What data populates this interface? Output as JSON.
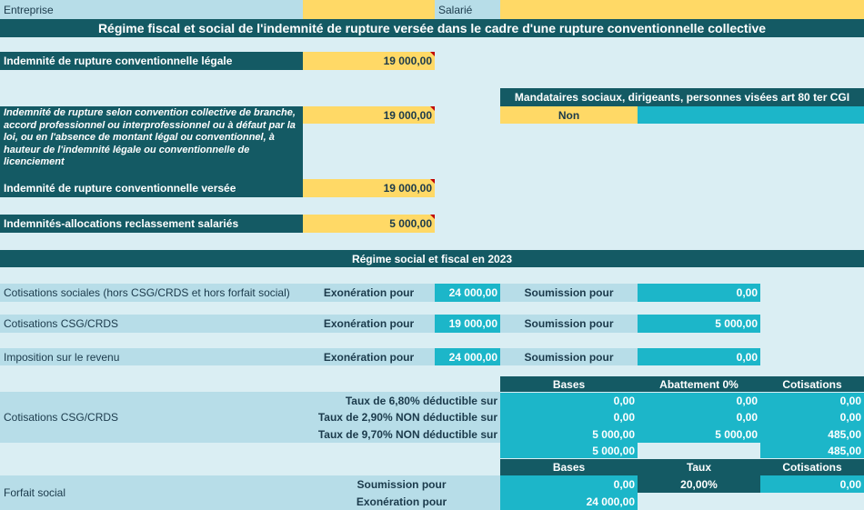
{
  "header": {
    "entreprise_label": "Entreprise",
    "salarie_label": "Salarié",
    "main_title": "Régime fiscal et social de l'indemnité de rupture versée dans le cadre d'une rupture conventionnelle collective"
  },
  "indemnites": {
    "legale_label": "Indemnité de rupture conventionnelle légale",
    "legale_value": "19 000,00",
    "convention_label": "Indemnité de rupture selon convention collective de branche, accord professionnel ou interprofessionnel ou à défaut par la loi, ou en l'absence de montant légal ou conventionnel, à hauteur de l'indemnité légale ou conventionnelle de licenciement",
    "convention_value": "19 000,00",
    "versee_label": "Indemnité de rupture conventionnelle versée",
    "versee_value": "19 000,00",
    "reclassement_label": "Indemnités-allocations reclassement salariés",
    "reclassement_value": "5 000,00"
  },
  "mandataires": {
    "label": "Mandataires sociaux, dirigeants, personnes visées art 80 ter CGI",
    "value": "Non"
  },
  "regime": {
    "title": "Régime social et fiscal en 2023",
    "exoneration_label": "Exonération pour",
    "soumission_label": "Soumission pour",
    "rows": [
      {
        "label": "Cotisations sociales (hors CSG/CRDS et hors forfait social)",
        "exoneration": "24 000,00",
        "soumission": "0,00"
      },
      {
        "label": "Cotisations CSG/CRDS",
        "exoneration": "19 000,00",
        "soumission": "5 000,00"
      },
      {
        "label": "Imposition sur le revenu",
        "exoneration": "24 000,00",
        "soumission": "0,00"
      }
    ]
  },
  "csg": {
    "label": "Cotisations CSG/CRDS",
    "headers": {
      "bases": "Bases",
      "abattement": "Abattement 0%",
      "cotisations": "Cotisations"
    },
    "rows": [
      {
        "label": "Taux de 6,80% déductible sur",
        "bases": "0,00",
        "abattement": "0,00",
        "cotisations": "0,00"
      },
      {
        "label": "Taux de 2,90% NON déductible sur",
        "bases": "0,00",
        "abattement": "0,00",
        "cotisations": "0,00"
      },
      {
        "label": "Taux de 9,70% NON déductible sur",
        "bases": "5 000,00",
        "abattement": "5 000,00",
        "cotisations": "485,00"
      }
    ],
    "total_bases": "5 000,00",
    "total_cotisations": "485,00"
  },
  "forfait": {
    "label": "Forfait social",
    "headers": {
      "bases": "Bases",
      "taux": "Taux",
      "cotisations": "Cotisations"
    },
    "soumission_label": "Soumission pour",
    "soumission_base": "0,00",
    "taux": "20,00%",
    "cotisations": "0,00",
    "exoneration_label": "Exonération pour",
    "exoneration_base": "24 000,00"
  },
  "colors": {
    "dark": "#145a64",
    "teal": "#1cb6c9",
    "yellow": "#ffd966",
    "background": "#daeef3"
  }
}
